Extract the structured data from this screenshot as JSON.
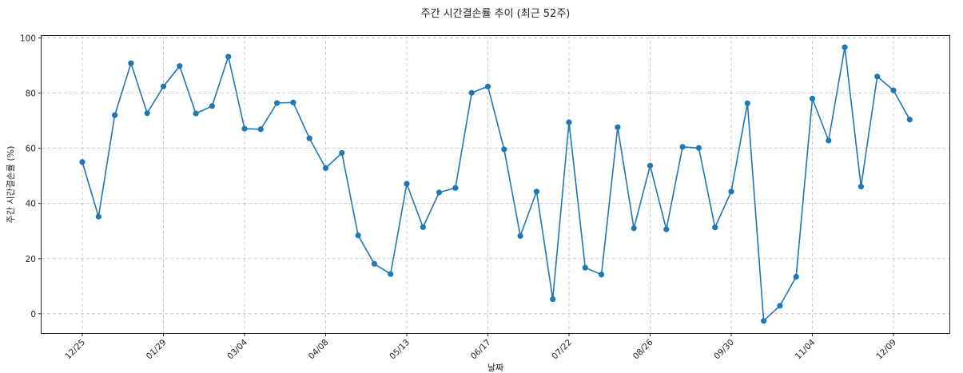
{
  "chart_data": {
    "type": "line",
    "title": "주간 시간결손률 추이 (최근 52주)",
    "xlabel": "날짜",
    "ylabel": "주간 시간결손률 (%)",
    "ylim": [
      -7,
      101
    ],
    "yticks": [
      0,
      20,
      40,
      60,
      80,
      100
    ],
    "grid": true,
    "legend": "none",
    "color": "#1f77b4",
    "x": [
      "12/25",
      "01/01",
      "01/08",
      "01/15",
      "01/22",
      "01/29",
      "02/05",
      "02/12",
      "02/19",
      "02/26",
      "03/04",
      "03/11",
      "03/18",
      "03/25",
      "04/01",
      "04/08",
      "04/15",
      "04/22",
      "04/29",
      "05/06",
      "05/13",
      "05/20",
      "05/27",
      "06/03",
      "06/10",
      "06/17",
      "06/24",
      "07/01",
      "07/08",
      "07/15",
      "07/22",
      "07/29",
      "08/05",
      "08/12",
      "08/19",
      "08/26",
      "09/02",
      "09/09",
      "09/16",
      "09/23",
      "09/30",
      "10/07",
      "10/14",
      "10/21",
      "10/28",
      "11/04",
      "11/11",
      "11/18",
      "11/25",
      "12/02",
      "12/09",
      "12/16"
    ],
    "xtick_labels": [
      "12/25",
      "01/29",
      "03/04",
      "04/08",
      "05/13",
      "06/17",
      "07/22",
      "08/26",
      "09/30",
      "11/04",
      "12/09"
    ],
    "series": [
      {
        "values": [
          55,
          35.2,
          72,
          90.8,
          72.7,
          82.4,
          89.8,
          72.6,
          75.3,
          93.2,
          67.1,
          66.9,
          76.4,
          76.6,
          63.6,
          52.8,
          58.3,
          28.4,
          18.1,
          14.4,
          47.1,
          31.4,
          44,
          45.6,
          80.1,
          82.4,
          59.6,
          28.2,
          44.3,
          5.3,
          69.4,
          16.7,
          14.2,
          67.6,
          31,
          53.7,
          30.6,
          60.5,
          60.1,
          31.3,
          44.3,
          76.3,
          -2.6,
          2.9,
          13.4,
          78,
          62.8,
          96.6,
          46.1,
          86,
          81,
          70.4
        ]
      }
    ]
  }
}
